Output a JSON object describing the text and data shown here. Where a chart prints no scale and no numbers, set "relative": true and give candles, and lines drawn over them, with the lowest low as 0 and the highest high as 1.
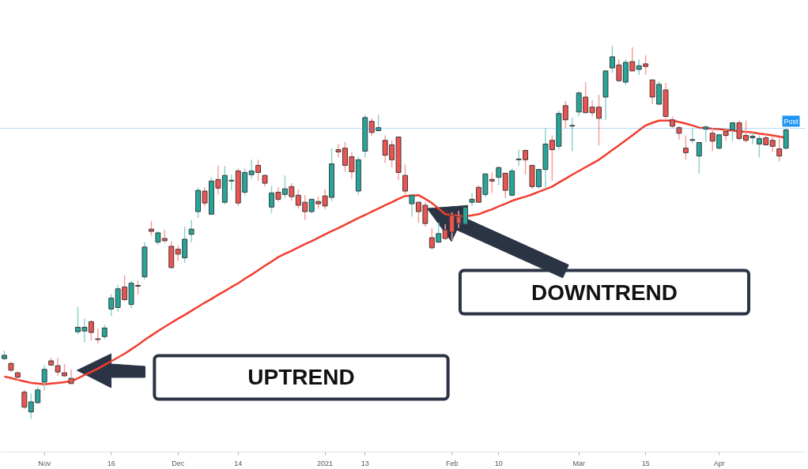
{
  "chart_data": {
    "type": "candlestick",
    "relative": true,
    "grid": false,
    "categories": [
      null,
      null,
      null,
      null,
      null,
      null,
      "Nov",
      null,
      null,
      null,
      null,
      null,
      null,
      null,
      null,
      null,
      "16",
      null,
      null,
      null,
      null,
      null,
      null,
      null,
      null,
      null,
      "Dec",
      null,
      null,
      null,
      null,
      null,
      null,
      null,
      null,
      "14",
      null,
      null,
      null,
      null,
      null,
      null,
      null,
      null,
      null,
      null,
      null,
      null,
      "2021",
      null,
      null,
      null,
      null,
      null,
      "13",
      null,
      null,
      null,
      null,
      null,
      null,
      null,
      null,
      null,
      null,
      null,
      null,
      "Feb",
      null,
      null,
      null,
      null,
      null,
      null,
      "10",
      null,
      null,
      null,
      null,
      null,
      null,
      null,
      null,
      null,
      null,
      null,
      "Mar",
      null,
      null,
      null,
      null,
      null,
      null,
      null,
      null,
      null,
      "15",
      null,
      null,
      null,
      null,
      null,
      null,
      null,
      null,
      null,
      null,
      "Apr",
      null,
      null,
      null,
      null,
      null,
      null,
      null,
      null,
      null,
      null
    ],
    "ohlc": [
      [
        0.162,
        0.183,
        0.158,
        0.171
      ],
      [
        0.149,
        0.154,
        0.126,
        0.131
      ],
      [
        0.124,
        0.128,
        0.103,
        0.112
      ],
      [
        0.072,
        0.078,
        0.027,
        0.032
      ],
      [
        0.019,
        0.069,
        0.0,
        0.046
      ],
      [
        0.044,
        0.086,
        0.04,
        0.078
      ],
      [
        0.099,
        0.145,
        0.076,
        0.133
      ],
      [
        0.156,
        0.164,
        0.141,
        0.145
      ],
      [
        0.143,
        0.164,
        0.116,
        0.126
      ],
      [
        0.124,
        0.147,
        0.112,
        0.116
      ],
      [
        0.109,
        0.133,
        0.095,
        0.095
      ],
      [
        0.234,
        0.301,
        0.227,
        0.246
      ],
      [
        0.236,
        0.269,
        0.206,
        0.246
      ],
      [
        0.261,
        0.265,
        0.211,
        0.232
      ],
      [
        0.215,
        0.242,
        0.202,
        0.213
      ],
      [
        0.221,
        0.253,
        0.215,
        0.244
      ],
      [
        0.295,
        0.335,
        0.276,
        0.324
      ],
      [
        0.299,
        0.36,
        0.288,
        0.349
      ],
      [
        0.354,
        0.385,
        0.316,
        0.32
      ],
      [
        0.307,
        0.371,
        0.297,
        0.364
      ],
      [
        0.358,
        0.371,
        0.333,
        0.356
      ],
      [
        0.381,
        0.474,
        0.375,
        0.461
      ],
      [
        0.509,
        0.531,
        0.491,
        0.503
      ],
      [
        0.474,
        0.503,
        0.467,
        0.499
      ],
      [
        0.484,
        0.507,
        0.472,
        0.478
      ],
      [
        0.463,
        0.476,
        0.404,
        0.406
      ],
      [
        0.455,
        0.465,
        0.423,
        0.442
      ],
      [
        0.432,
        0.516,
        0.419,
        0.482
      ],
      [
        0.495,
        0.533,
        0.474,
        0.509
      ],
      [
        0.556,
        0.621,
        0.539,
        0.613
      ],
      [
        0.611,
        0.621,
        0.571,
        0.579
      ],
      [
        0.549,
        0.648,
        0.549,
        0.638
      ],
      [
        0.642,
        0.68,
        0.602,
        0.619
      ],
      [
        0.581,
        0.678,
        0.575,
        0.653
      ],
      [
        0.638,
        0.655,
        0.613,
        0.64
      ],
      [
        0.665,
        0.672,
        0.571,
        0.579
      ],
      [
        0.608,
        0.672,
        0.6,
        0.661
      ],
      [
        0.655,
        0.695,
        0.644,
        0.665
      ],
      [
        0.68,
        0.695,
        0.638,
        0.661
      ],
      [
        0.653,
        0.655,
        0.623,
        0.632
      ],
      [
        0.568,
        0.625,
        0.552,
        0.606
      ],
      [
        0.608,
        0.621,
        0.583,
        0.589
      ],
      [
        0.602,
        0.653,
        0.592,
        0.617
      ],
      [
        0.623,
        0.632,
        0.585,
        0.596
      ],
      [
        0.6,
        0.615,
        0.564,
        0.573
      ],
      [
        0.581,
        0.6,
        0.533,
        0.556
      ],
      [
        0.556,
        0.589,
        0.552,
        0.589
      ],
      [
        0.583,
        0.596,
        0.564,
        0.577
      ],
      [
        0.598,
        0.617,
        0.562,
        0.571
      ],
      [
        0.594,
        0.726,
        0.583,
        0.684
      ],
      [
        0.722,
        0.737,
        0.701,
        0.716
      ],
      [
        0.726,
        0.743,
        0.663,
        0.68
      ],
      [
        0.703,
        0.716,
        0.644,
        0.663
      ],
      [
        0.611,
        0.703,
        0.6,
        0.695
      ],
      [
        0.718,
        0.815,
        0.701,
        0.808
      ],
      [
        0.798,
        0.806,
        0.758,
        0.768
      ],
      [
        0.773,
        0.815,
        0.773,
        0.781
      ],
      [
        0.747,
        0.76,
        0.686,
        0.707
      ],
      [
        0.735,
        0.747,
        0.674,
        0.695
      ],
      [
        0.756,
        0.756,
        0.64,
        0.661
      ],
      [
        0.653,
        0.682,
        0.602,
        0.611
      ],
      [
        0.577,
        0.6,
        0.543,
        0.6
      ],
      [
        0.581,
        0.581,
        0.526,
        0.556
      ],
      [
        0.573,
        0.581,
        0.516,
        0.524
      ],
      [
        0.486,
        0.512,
        0.455,
        0.459
      ],
      [
        0.474,
        0.526,
        0.474,
        0.497
      ],
      [
        0.507,
        0.522,
        0.48,
        0.484
      ],
      [
        0.547,
        0.554,
        0.48,
        0.501
      ],
      [
        0.543,
        0.558,
        0.512,
        0.524
      ],
      [
        0.522,
        0.568,
        0.522,
        0.568
      ],
      [
        0.581,
        0.606,
        0.571,
        0.589
      ],
      [
        0.621,
        0.627,
        0.581,
        0.581
      ],
      [
        0.602,
        0.657,
        0.594,
        0.657
      ],
      [
        0.642,
        0.661,
        0.606,
        0.638
      ],
      [
        0.648,
        0.678,
        0.627,
        0.674
      ],
      [
        0.659,
        0.659,
        0.592,
        0.613
      ],
      [
        0.6,
        0.672,
        0.596,
        0.665
      ],
      [
        0.695,
        0.722,
        0.678,
        0.697
      ],
      [
        0.72,
        0.722,
        0.655,
        0.695
      ],
      [
        0.68,
        0.68,
        0.617,
        0.623
      ],
      [
        0.623,
        0.669,
        0.617,
        0.669
      ],
      [
        0.669,
        0.779,
        0.617,
        0.737
      ],
      [
        0.747,
        0.76,
        0.638,
        0.722
      ],
      [
        0.731,
        0.827,
        0.722,
        0.819
      ],
      [
        0.84,
        0.853,
        0.779,
        0.802
      ],
      [
        0.785,
        0.808,
        0.718,
        0.787
      ],
      [
        0.823,
        0.878,
        0.811,
        0.874
      ],
      [
        0.863,
        0.903,
        0.821,
        0.821
      ],
      [
        0.836,
        0.855,
        0.811,
        0.821
      ],
      [
        0.836,
        0.869,
        0.733,
        0.806
      ],
      [
        0.863,
        0.933,
        0.802,
        0.933
      ],
      [
        0.941,
        1.0,
        0.928,
        0.971
      ],
      [
        0.949,
        0.964,
        0.903,
        0.907
      ],
      [
        0.903,
        0.964,
        0.895,
        0.956
      ],
      [
        0.958,
        0.996,
        0.933,
        0.933
      ],
      [
        0.937,
        0.964,
        0.922,
        0.947
      ],
      [
        0.952,
        0.975,
        0.922,
        0.945
      ],
      [
        0.909,
        0.909,
        0.844,
        0.863
      ],
      [
        0.844,
        0.905,
        0.842,
        0.897
      ],
      [
        0.882,
        0.901,
        0.806,
        0.811
      ],
      [
        0.802,
        0.811,
        0.779,
        0.785
      ],
      [
        0.781,
        0.785,
        0.749,
        0.766
      ],
      [
        0.726,
        0.76,
        0.695,
        0.714
      ],
      [
        0.747,
        0.779,
        0.739,
        0.749
      ],
      [
        0.705,
        0.741,
        0.657,
        0.741
      ],
      [
        0.777,
        0.787,
        0.743,
        0.783
      ],
      [
        0.766,
        0.779,
        0.718,
        0.745
      ],
      [
        0.726,
        0.762,
        0.722,
        0.762
      ],
      [
        0.771,
        0.779,
        0.747,
        0.76
      ],
      [
        0.775,
        0.796,
        0.745,
        0.794
      ],
      [
        0.794,
        0.8,
        0.747,
        0.752
      ],
      [
        0.76,
        0.8,
        0.741,
        0.747
      ],
      [
        0.754,
        0.768,
        0.737,
        0.758
      ],
      [
        0.737,
        0.76,
        0.701,
        0.752
      ],
      [
        0.754,
        0.764,
        0.733,
        0.735
      ],
      [
        0.747,
        0.758,
        0.716,
        0.731
      ],
      [
        0.724,
        0.752,
        0.691,
        0.705
      ],
      [
        0.726,
        0.779,
        0.722,
        0.775
      ]
    ],
    "series": [
      {
        "type": "line",
        "color": "#f23d2f",
        "values": [
          0.114,
          0.11,
          0.105,
          0.101,
          0.097,
          0.095,
          0.093,
          0.095,
          0.097,
          0.099,
          0.101,
          0.109,
          0.118,
          0.126,
          0.135,
          0.145,
          0.155,
          0.165,
          0.175,
          0.187,
          0.199,
          0.212,
          0.224,
          0.236,
          0.247,
          0.258,
          0.269,
          0.279,
          0.29,
          0.301,
          0.312,
          0.322,
          0.333,
          0.343,
          0.354,
          0.364,
          0.376,
          0.387,
          0.399,
          0.411,
          0.422,
          0.434,
          0.443,
          0.451,
          0.46,
          0.469,
          0.477,
          0.486,
          0.495,
          0.504,
          0.512,
          0.521,
          0.53,
          0.539,
          0.547,
          0.556,
          0.564,
          0.573,
          0.581,
          0.59,
          0.598,
          0.599,
          0.6,
          0.59,
          0.579,
          0.564,
          0.549,
          0.547,
          0.545,
          0.543,
          0.546,
          0.549,
          0.556,
          0.562,
          0.57,
          0.577,
          0.585,
          0.591,
          0.596,
          0.602,
          0.609,
          0.616,
          0.623,
          0.634,
          0.644,
          0.655,
          0.665,
          0.675,
          0.685,
          0.695,
          0.708,
          0.721,
          0.734,
          0.747,
          0.76,
          0.774,
          0.787,
          0.794,
          0.8,
          0.8,
          0.8,
          0.796,
          0.792,
          0.787,
          0.781,
          0.78,
          0.778,
          0.777,
          0.775,
          0.773,
          0.771,
          0.77,
          0.768,
          0.765,
          0.763,
          0.76,
          0.757,
          0.754
        ]
      }
    ],
    "ref_lines": [
      {
        "axis": "y",
        "value": 0.779,
        "label": "Post",
        "color": "#2196f3"
      }
    ],
    "annotations": [
      "UPTREND",
      "DOWNTREND"
    ]
  }
}
